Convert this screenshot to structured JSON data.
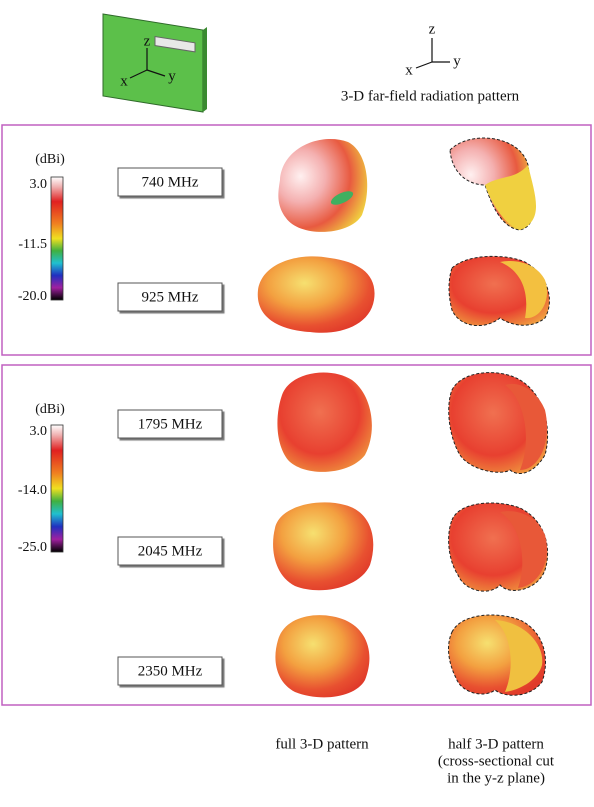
{
  "header": {
    "board_axes": {
      "z": "z",
      "x": "x",
      "y": "y"
    },
    "pattern_axes": {
      "z": "z",
      "x": "x",
      "y": "y"
    },
    "title": "3-D far-field radiation pattern"
  },
  "panels": [
    {
      "colorbar": {
        "unit": "(dBi)",
        "ticks": [
          "3.0",
          "-11.5",
          "-20.0"
        ]
      },
      "frequencies": [
        "740 MHz",
        "925 MHz"
      ]
    },
    {
      "colorbar": {
        "unit": "(dBi)",
        "ticks": [
          "3.0",
          "-14.0",
          "-25.0"
        ]
      },
      "frequencies": [
        "1795 MHz",
        "2045 MHz",
        "2350 MHz"
      ]
    }
  ],
  "footer": {
    "full": "full 3-D pattern",
    "half": [
      "half 3-D pattern",
      "(cross-sectional cut",
      "in the y-z plane)"
    ]
  }
}
